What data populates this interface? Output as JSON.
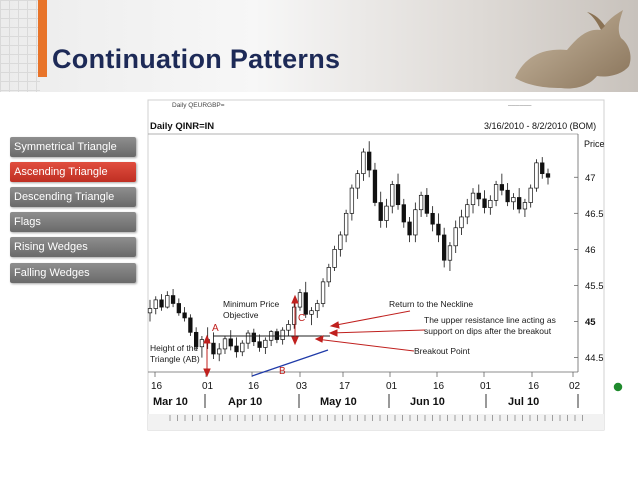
{
  "slide": {
    "title": "Continuation Patterns",
    "accent_color": "#e8742a",
    "title_color": "#1d2a57"
  },
  "nav": {
    "items": [
      {
        "label": "Symmetrical Triangle",
        "active": false
      },
      {
        "label": "Ascending Triangle",
        "active": true
      },
      {
        "label": "Descending Triangle",
        "active": false
      },
      {
        "label": "Flags",
        "active": false
      },
      {
        "label": "Rising Wedges",
        "active": false
      },
      {
        "label": "Falling Wedges",
        "active": false
      }
    ]
  },
  "chart_data": {
    "type": "candlestick",
    "header_left": "Daily QEURGBP=",
    "title": "Daily QINR=IN",
    "date_range": "3/16/2010 - 8/2/2010 (BOM)",
    "ylabel": "Price",
    "ylim": [
      44.3,
      47.6
    ],
    "yticks": [
      "47",
      "46.5",
      "46",
      "45.5",
      "45",
      "44.5"
    ],
    "xtick_labels": [
      "16",
      "01",
      "16",
      "03",
      "17",
      "01",
      "16",
      "01",
      "16",
      "02"
    ],
    "month_labels": [
      "Mar 10",
      "Apr 10",
      "May 10",
      "Jun 10",
      "Jul 10"
    ],
    "candles": [
      [
        45.12,
        45.3,
        45.0,
        45.18
      ],
      [
        45.18,
        45.35,
        45.1,
        45.3
      ],
      [
        45.3,
        45.38,
        45.15,
        45.2
      ],
      [
        45.2,
        45.42,
        45.18,
        45.36
      ],
      [
        45.36,
        45.45,
        45.2,
        45.25
      ],
      [
        45.25,
        45.32,
        45.08,
        45.12
      ],
      [
        45.12,
        45.2,
        45.0,
        45.05
      ],
      [
        45.05,
        45.1,
        44.8,
        44.85
      ],
      [
        44.85,
        44.92,
        44.6,
        44.65
      ],
      [
        44.65,
        44.8,
        44.5,
        44.75
      ],
      [
        44.75,
        44.92,
        44.62,
        44.7
      ],
      [
        44.7,
        44.85,
        44.48,
        44.55
      ],
      [
        44.55,
        44.7,
        44.45,
        44.62
      ],
      [
        44.62,
        44.8,
        44.55,
        44.76
      ],
      [
        44.76,
        44.88,
        44.6,
        44.66
      ],
      [
        44.66,
        44.78,
        44.5,
        44.58
      ],
      [
        44.58,
        44.74,
        44.52,
        44.7
      ],
      [
        44.7,
        44.88,
        44.62,
        44.84
      ],
      [
        44.84,
        44.9,
        44.66,
        44.72
      ],
      [
        44.72,
        44.82,
        44.58,
        44.64
      ],
      [
        44.64,
        44.78,
        44.55,
        44.74
      ],
      [
        44.74,
        44.88,
        44.66,
        44.86
      ],
      [
        44.86,
        44.9,
        44.7,
        44.75
      ],
      [
        44.75,
        44.92,
        44.68,
        44.88
      ],
      [
        44.88,
        45.02,
        44.8,
        44.96
      ],
      [
        44.96,
        45.25,
        44.9,
        45.2
      ],
      [
        45.2,
        45.45,
        45.15,
        45.4
      ],
      [
        45.4,
        45.55,
        45.05,
        45.1
      ],
      [
        45.1,
        45.2,
        44.95,
        45.15
      ],
      [
        45.15,
        45.3,
        45.05,
        45.25
      ],
      [
        45.25,
        45.6,
        45.2,
        45.55
      ],
      [
        45.55,
        45.8,
        45.48,
        45.75
      ],
      [
        45.75,
        46.05,
        45.7,
        46.0
      ],
      [
        46.0,
        46.25,
        45.9,
        46.2
      ],
      [
        46.2,
        46.55,
        46.1,
        46.5
      ],
      [
        46.5,
        46.9,
        46.4,
        46.85
      ],
      [
        46.85,
        47.1,
        46.7,
        47.05
      ],
      [
        47.05,
        47.4,
        46.95,
        47.35
      ],
      [
        47.35,
        47.5,
        47.0,
        47.1
      ],
      [
        47.1,
        47.2,
        46.6,
        46.65
      ],
      [
        46.65,
        46.8,
        46.3,
        46.4
      ],
      [
        46.4,
        46.7,
        46.3,
        46.6
      ],
      [
        46.6,
        46.95,
        46.5,
        46.9
      ],
      [
        46.9,
        47.05,
        46.55,
        46.62
      ],
      [
        46.62,
        46.7,
        46.3,
        46.38
      ],
      [
        46.38,
        46.45,
        46.1,
        46.2
      ],
      [
        46.2,
        46.65,
        46.1,
        46.55
      ],
      [
        46.55,
        46.8,
        46.45,
        46.75
      ],
      [
        46.75,
        46.85,
        46.45,
        46.5
      ],
      [
        46.5,
        46.6,
        46.25,
        46.35
      ],
      [
        46.35,
        46.5,
        46.1,
        46.2
      ],
      [
        46.2,
        46.3,
        45.75,
        45.85
      ],
      [
        45.85,
        46.1,
        45.7,
        46.05
      ],
      [
        46.05,
        46.4,
        45.95,
        46.3
      ],
      [
        46.3,
        46.55,
        46.2,
        46.45
      ],
      [
        46.45,
        46.7,
        46.35,
        46.62
      ],
      [
        46.62,
        46.85,
        46.5,
        46.78
      ],
      [
        46.78,
        46.9,
        46.6,
        46.7
      ],
      [
        46.7,
        46.82,
        46.5,
        46.58
      ],
      [
        46.58,
        46.75,
        46.48,
        46.68
      ],
      [
        46.68,
        46.95,
        46.6,
        46.9
      ],
      [
        46.9,
        47.05,
        46.75,
        46.82
      ],
      [
        46.82,
        46.92,
        46.6,
        46.66
      ],
      [
        46.66,
        46.78,
        46.55,
        46.72
      ],
      [
        46.72,
        46.85,
        46.5,
        46.56
      ],
      [
        46.56,
        46.7,
        46.45,
        46.65
      ],
      [
        46.65,
        46.9,
        46.58,
        46.85
      ],
      [
        46.85,
        47.25,
        46.8,
        47.2
      ],
      [
        47.2,
        47.28,
        46.98,
        47.05
      ],
      [
        47.05,
        47.12,
        46.9,
        47.0
      ]
    ],
    "annotations": {
      "minimum_price_objective": "Minimum Price Objective",
      "return_to_neckline": "Return to the Neckline",
      "resistance_support": "The upper resistance line acting as support  on dips after the breakout",
      "breakout_point": "Breakout Point",
      "height_of_triangle": "Height of the Triangle (AB)",
      "point_a": "A",
      "point_b": "B",
      "point_c": "C"
    },
    "colors": {
      "candle": "#111111",
      "arrow": "#c0201e",
      "support_line": "#1f3aa8",
      "resistance_line": "#222222"
    }
  }
}
